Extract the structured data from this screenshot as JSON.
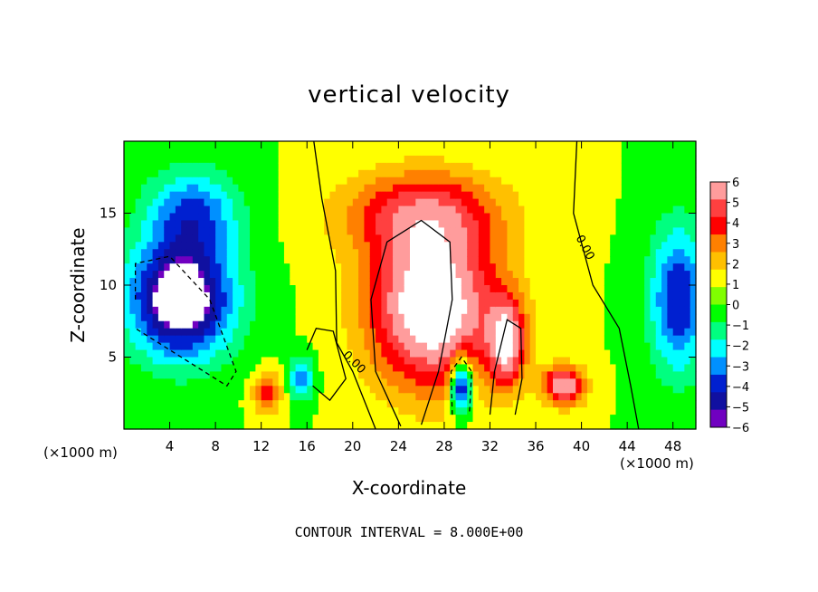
{
  "chart_data": {
    "type": "heatmap",
    "title": "vertical velocity",
    "xlabel": "X-coordinate",
    "ylabel": "Z-coordinate",
    "x_unit_left": "(×1000 m)",
    "x_unit_right": "(×1000 m)",
    "xlim": [
      0,
      50
    ],
    "ylim": [
      0,
      20
    ],
    "xticks": [
      4,
      8,
      12,
      16,
      20,
      24,
      28,
      32,
      36,
      40,
      44,
      48
    ],
    "yticks": [
      5,
      10,
      15
    ],
    "colorbar": {
      "levels": [
        6,
        5,
        4,
        3,
        2,
        1,
        0,
        -1,
        -2,
        -3,
        -4,
        -5,
        -6
      ],
      "labels": [
        "6",
        "5",
        "4",
        "3",
        "2",
        "1",
        "0",
        "−1",
        "−2",
        "−3",
        "−4",
        "−5",
        "−6"
      ],
      "colors": [
        "#ff9c9c",
        "#ff4040",
        "#ff0000",
        "#ff8000",
        "#ffc000",
        "#ffff00",
        "#80ff00",
        "#00ff00",
        "#00ff80",
        "#00ffff",
        "#0090ff",
        "#0020d0",
        "#1010a0",
        "#7000c0"
      ]
    },
    "contour_label": "0.00",
    "footer": "CONTOUR INTERVAL = 8.000E+00",
    "features": [
      {
        "sign": "positive",
        "x": 27,
        "z": 8.5,
        "sx": 5.5,
        "sz": 5.5,
        "amp": 8
      },
      {
        "sign": "positive",
        "x": 26,
        "z": 15,
        "sx": 7,
        "sz": 3,
        "amp": 4
      },
      {
        "sign": "positive",
        "x": 33.5,
        "z": 6,
        "sx": 1.6,
        "sz": 3,
        "amp": 6
      },
      {
        "sign": "positive",
        "x": 38.5,
        "z": 3,
        "sx": 1.8,
        "sz": 1.3,
        "amp": 6.5
      },
      {
        "sign": "positive",
        "x": 12.5,
        "z": 2.5,
        "sx": 1.2,
        "sz": 1.3,
        "amp": 4
      },
      {
        "sign": "negative",
        "x": 5,
        "z": 9,
        "sx": 4.5,
        "sz": 4,
        "amp": -8
      },
      {
        "sign": "negative",
        "x": 6,
        "z": 15,
        "sx": 4,
        "sz": 3,
        "amp": -4
      },
      {
        "sign": "negative",
        "x": 48.5,
        "z": 9,
        "sx": 2.5,
        "sz": 5,
        "amp": -5
      },
      {
        "sign": "negative",
        "x": 29.5,
        "z": 3,
        "sx": 0.9,
        "sz": 2,
        "amp": -7
      },
      {
        "sign": "negative",
        "x": 15.5,
        "z": 3.5,
        "sx": 1,
        "sz": 1.5,
        "amp": -4
      }
    ]
  }
}
